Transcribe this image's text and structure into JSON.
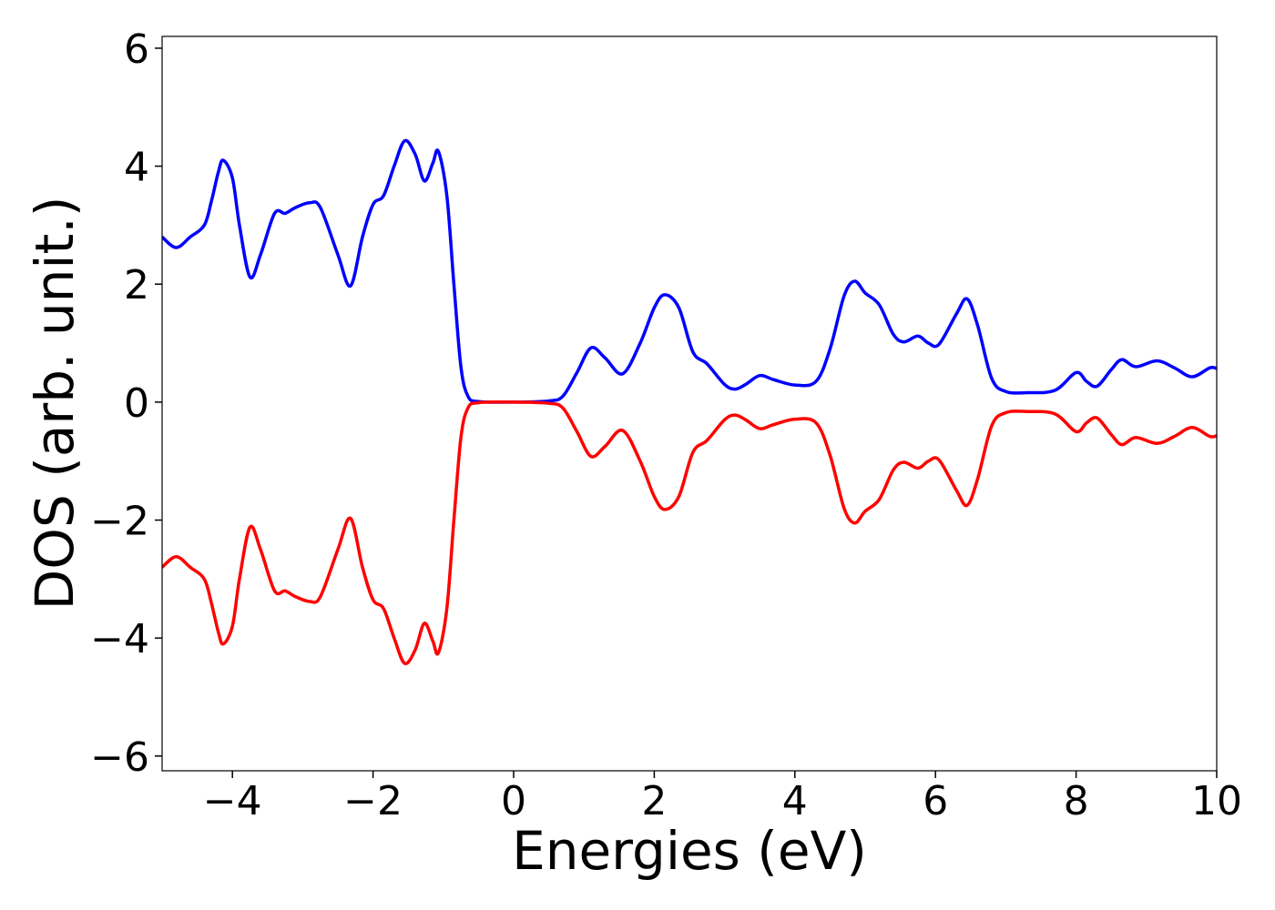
{
  "chart_data": {
    "type": "line",
    "xlabel": "Energies (eV)",
    "ylabel": "DOS (arb. unit.)",
    "x": [
      -5.0,
      -4.8,
      -4.6,
      -4.4,
      -4.3,
      -4.2,
      -4.13,
      -4.0,
      -3.9,
      -3.75,
      -3.6,
      -3.4,
      -3.25,
      -3.1,
      -2.9,
      -2.75,
      -2.5,
      -2.32,
      -2.15,
      -2.0,
      -1.85,
      -1.7,
      -1.55,
      -1.4,
      -1.27,
      -1.15,
      -1.07,
      -0.95,
      -0.85,
      -0.75,
      -0.65,
      -0.5,
      0,
      0.5,
      0.7,
      0.9,
      1.1,
      1.3,
      1.55,
      1.8,
      2.0,
      2.15,
      2.35,
      2.55,
      2.75,
      3.0,
      3.15,
      3.3,
      3.5,
      3.7,
      4.0,
      4.3,
      4.5,
      4.7,
      4.85,
      5.0,
      5.2,
      5.4,
      5.55,
      5.75,
      5.9,
      6.05,
      6.3,
      6.45,
      6.6,
      6.8,
      7.0,
      7.3,
      7.7,
      8.0,
      8.15,
      8.3,
      8.5,
      8.65,
      8.85,
      9.15,
      9.4,
      9.65,
      9.9,
      10.0
    ],
    "series": [
      {
        "color": "#0000ff",
        "values": [
          2.8,
          2.62,
          2.8,
          3.0,
          3.4,
          3.9,
          4.1,
          3.8,
          3.0,
          2.12,
          2.5,
          3.2,
          3.2,
          3.3,
          3.38,
          3.3,
          2.5,
          1.97,
          2.8,
          3.35,
          3.5,
          4.0,
          4.43,
          4.2,
          3.75,
          4.05,
          4.25,
          3.5,
          2.0,
          0.6,
          0.1,
          0.01,
          0,
          0.02,
          0.1,
          0.5,
          0.92,
          0.75,
          0.48,
          1.0,
          1.6,
          1.82,
          1.6,
          0.85,
          0.65,
          0.3,
          0.22,
          0.3,
          0.45,
          0.38,
          0.29,
          0.35,
          0.9,
          1.8,
          2.05,
          1.85,
          1.65,
          1.15,
          1.02,
          1.12,
          1.0,
          0.98,
          1.5,
          1.75,
          1.3,
          0.4,
          0.18,
          0.16,
          0.2,
          0.5,
          0.35,
          0.27,
          0.55,
          0.72,
          0.6,
          0.7,
          0.58,
          0.43,
          0.58,
          0.57
        ]
      },
      {
        "color": "#ff0000",
        "values": [
          -2.8,
          -2.62,
          -2.8,
          -3.0,
          -3.4,
          -3.9,
          -4.1,
          -3.8,
          -3.0,
          -2.12,
          -2.5,
          -3.2,
          -3.2,
          -3.3,
          -3.38,
          -3.3,
          -2.5,
          -1.97,
          -2.8,
          -3.35,
          -3.5,
          -4.0,
          -4.43,
          -4.2,
          -3.75,
          -4.05,
          -4.25,
          -3.5,
          -2.0,
          -0.6,
          -0.1,
          -0.01,
          0,
          -0.02,
          -0.1,
          -0.5,
          -0.92,
          -0.75,
          -0.48,
          -1.0,
          -1.6,
          -1.82,
          -1.6,
          -0.85,
          -0.65,
          -0.3,
          -0.22,
          -0.3,
          -0.45,
          -0.38,
          -0.29,
          -0.35,
          -0.9,
          -1.8,
          -2.05,
          -1.85,
          -1.65,
          -1.15,
          -1.02,
          -1.12,
          -1.0,
          -0.98,
          -1.5,
          -1.75,
          -1.3,
          -0.4,
          -0.18,
          -0.16,
          -0.2,
          -0.5,
          -0.35,
          -0.27,
          -0.55,
          -0.72,
          -0.6,
          -0.7,
          -0.58,
          -0.43,
          -0.58,
          -0.57
        ]
      }
    ],
    "xlim": [
      -5,
      10
    ],
    "xticks": [
      {
        "value": -4,
        "label": "−4"
      },
      {
        "value": -2,
        "label": "−2"
      },
      0,
      2,
      4,
      6,
      8,
      10
    ],
    "ylim": [
      -6.25,
      6.2
    ],
    "yticks": [
      {
        "value": -6,
        "label": "−6"
      },
      {
        "value": -4,
        "label": "−4"
      },
      {
        "value": -2,
        "label": "−2"
      },
      0,
      2,
      4,
      6
    ],
    "grid": false
  }
}
